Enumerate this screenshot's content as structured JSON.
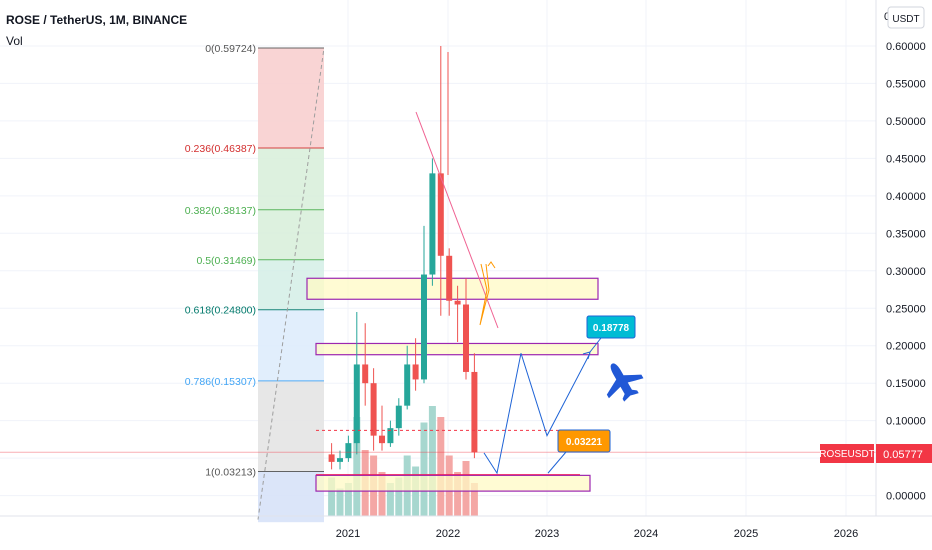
{
  "header": {
    "title": "ROSE / TetherUS, 1M, BINANCE",
    "indicator": "Vol"
  },
  "price_scale": {
    "currency": "USDT",
    "top_label": "0",
    "ticks": [
      "0.60000",
      "0.55000",
      "0.50000",
      "0.45000",
      "0.40000",
      "0.35000",
      "0.30000",
      "0.25000",
      "0.20000",
      "0.15000",
      "0.10000",
      "0.05000",
      "0.00000"
    ]
  },
  "time_scale": {
    "ticks": [
      "2021",
      "2022",
      "2023",
      "2024",
      "2025",
      "2026"
    ]
  },
  "symbol_badge": {
    "label": "ROSEUSDT",
    "price": "0.05777"
  },
  "annotations": {
    "target_label": "0.18778",
    "low_label": "0.03221"
  },
  "fib_labels": [
    {
      "ratio": "0",
      "text": "0(0.59724)",
      "color": "#555555"
    },
    {
      "ratio": "0.236",
      "text": "0.236(0.46387)",
      "color": "#d32f2f"
    },
    {
      "ratio": "0.382",
      "text": "0.382(0.38137)",
      "color": "#4caf50"
    },
    {
      "ratio": "0.5",
      "text": "0.5(0.31469)",
      "color": "#4caf50"
    },
    {
      "ratio": "0.618",
      "text": "0.618(0.24800)",
      "color": "#00796b"
    },
    {
      "ratio": "0.786",
      "text": "0.786(0.15307)",
      "color": "#42a5f5"
    },
    {
      "ratio": "1",
      "text": "1(0.03213)",
      "color": "#555555"
    }
  ],
  "colors": {
    "up": "#26a69a",
    "down": "#ef5350",
    "vol_up": "#a7d7cf",
    "vol_down": "#f4a7a5",
    "badge": "#f23645",
    "target_badge": "#00bcd4",
    "low_badge": "#ff9800",
    "zone_border": "#9c27b0",
    "zone_fill": "#fff9c4",
    "path": "#1e63d6"
  },
  "chart_data": {
    "type": "candlestick",
    "symbol": "ROSE / TetherUS",
    "interval": "1M",
    "exchange": "BINANCE",
    "y_range": [
      -0.03,
      0.64
    ],
    "x_ticks": [
      "2021",
      "2022",
      "2023",
      "2024",
      "2025",
      "2026"
    ],
    "last_price": 0.05777,
    "fibonacci": [
      {
        "level": 0,
        "price": 0.59724
      },
      {
        "level": 0.236,
        "price": 0.46387
      },
      {
        "level": 0.382,
        "price": 0.38137
      },
      {
        "level": 0.5,
        "price": 0.31469
      },
      {
        "level": 0.618,
        "price": 0.248
      },
      {
        "level": 0.786,
        "price": 0.15307
      },
      {
        "level": 1,
        "price": 0.03213
      }
    ],
    "zones": [
      {
        "from": 0.262,
        "to": 0.29
      },
      {
        "from": 0.188,
        "to": 0.203
      },
      {
        "from": 0.006,
        "to": 0.027
      }
    ],
    "projection_path": [
      0.057,
      0.03,
      0.19,
      0.08,
      0.19
    ],
    "marked_prices": [
      0.18778,
      0.03221
    ],
    "candles": [
      {
        "date": "2020-11",
        "o": 0.055,
        "h": 0.07,
        "l": 0.035,
        "c": 0.045
      },
      {
        "date": "2020-12",
        "o": 0.045,
        "h": 0.06,
        "l": 0.035,
        "c": 0.05
      },
      {
        "date": "2021-01",
        "o": 0.05,
        "h": 0.08,
        "l": 0.045,
        "c": 0.07
      },
      {
        "date": "2021-02",
        "o": 0.07,
        "h": 0.245,
        "l": 0.055,
        "c": 0.175
      },
      {
        "date": "2021-03",
        "o": 0.175,
        "h": 0.23,
        "l": 0.12,
        "c": 0.15
      },
      {
        "date": "2021-04",
        "o": 0.15,
        "h": 0.17,
        "l": 0.06,
        "c": 0.08
      },
      {
        "date": "2021-05",
        "o": 0.08,
        "h": 0.12,
        "l": 0.06,
        "c": 0.07
      },
      {
        "date": "2021-06",
        "o": 0.07,
        "h": 0.1,
        "l": 0.065,
        "c": 0.09
      },
      {
        "date": "2021-07",
        "o": 0.09,
        "h": 0.13,
        "l": 0.08,
        "c": 0.12
      },
      {
        "date": "2021-08",
        "o": 0.12,
        "h": 0.2,
        "l": 0.115,
        "c": 0.175
      },
      {
        "date": "2021-09",
        "o": 0.175,
        "h": 0.21,
        "l": 0.14,
        "c": 0.155
      },
      {
        "date": "2021-10",
        "o": 0.155,
        "h": 0.36,
        "l": 0.15,
        "c": 0.295
      },
      {
        "date": "2021-11",
        "o": 0.295,
        "h": 0.45,
        "l": 0.28,
        "c": 0.43
      },
      {
        "date": "2021-12",
        "o": 0.43,
        "h": 0.6,
        "l": 0.24,
        "c": 0.32
      },
      {
        "date": "2022-01",
        "o": 0.32,
        "h": 0.33,
        "l": 0.24,
        "c": 0.26
      },
      {
        "date": "2022-02",
        "o": 0.26,
        "h": 0.28,
        "l": 0.205,
        "c": 0.255
      },
      {
        "date": "2022-03",
        "o": 0.255,
        "h": 0.29,
        "l": 0.155,
        "c": 0.165
      },
      {
        "date": "2022-04",
        "o": 0.165,
        "h": 0.19,
        "l": 0.05,
        "c": 0.0578
      }
    ],
    "volume": [
      {
        "date": "2020-11",
        "v": 0.35,
        "up": true
      },
      {
        "date": "2020-12",
        "v": 0.25,
        "up": true
      },
      {
        "date": "2021-01",
        "v": 0.3,
        "up": true
      },
      {
        "date": "2021-02",
        "v": 0.9,
        "up": true
      },
      {
        "date": "2021-03",
        "v": 0.6,
        "up": false
      },
      {
        "date": "2021-04",
        "v": 0.55,
        "up": false
      },
      {
        "date": "2021-05",
        "v": 0.4,
        "up": false
      },
      {
        "date": "2021-06",
        "v": 0.3,
        "up": true
      },
      {
        "date": "2021-07",
        "v": 0.35,
        "up": true
      },
      {
        "date": "2021-08",
        "v": 0.55,
        "up": true
      },
      {
        "date": "2021-09",
        "v": 0.45,
        "up": true
      },
      {
        "date": "2021-10",
        "v": 0.85,
        "up": true
      },
      {
        "date": "2021-11",
        "v": 1.0,
        "up": true
      },
      {
        "date": "2021-12",
        "v": 0.9,
        "up": false
      },
      {
        "date": "2022-01",
        "v": 0.55,
        "up": false
      },
      {
        "date": "2022-02",
        "v": 0.4,
        "up": false
      },
      {
        "date": "2022-03",
        "v": 0.5,
        "up": false
      },
      {
        "date": "2022-04",
        "v": 0.3,
        "up": false
      }
    ]
  }
}
